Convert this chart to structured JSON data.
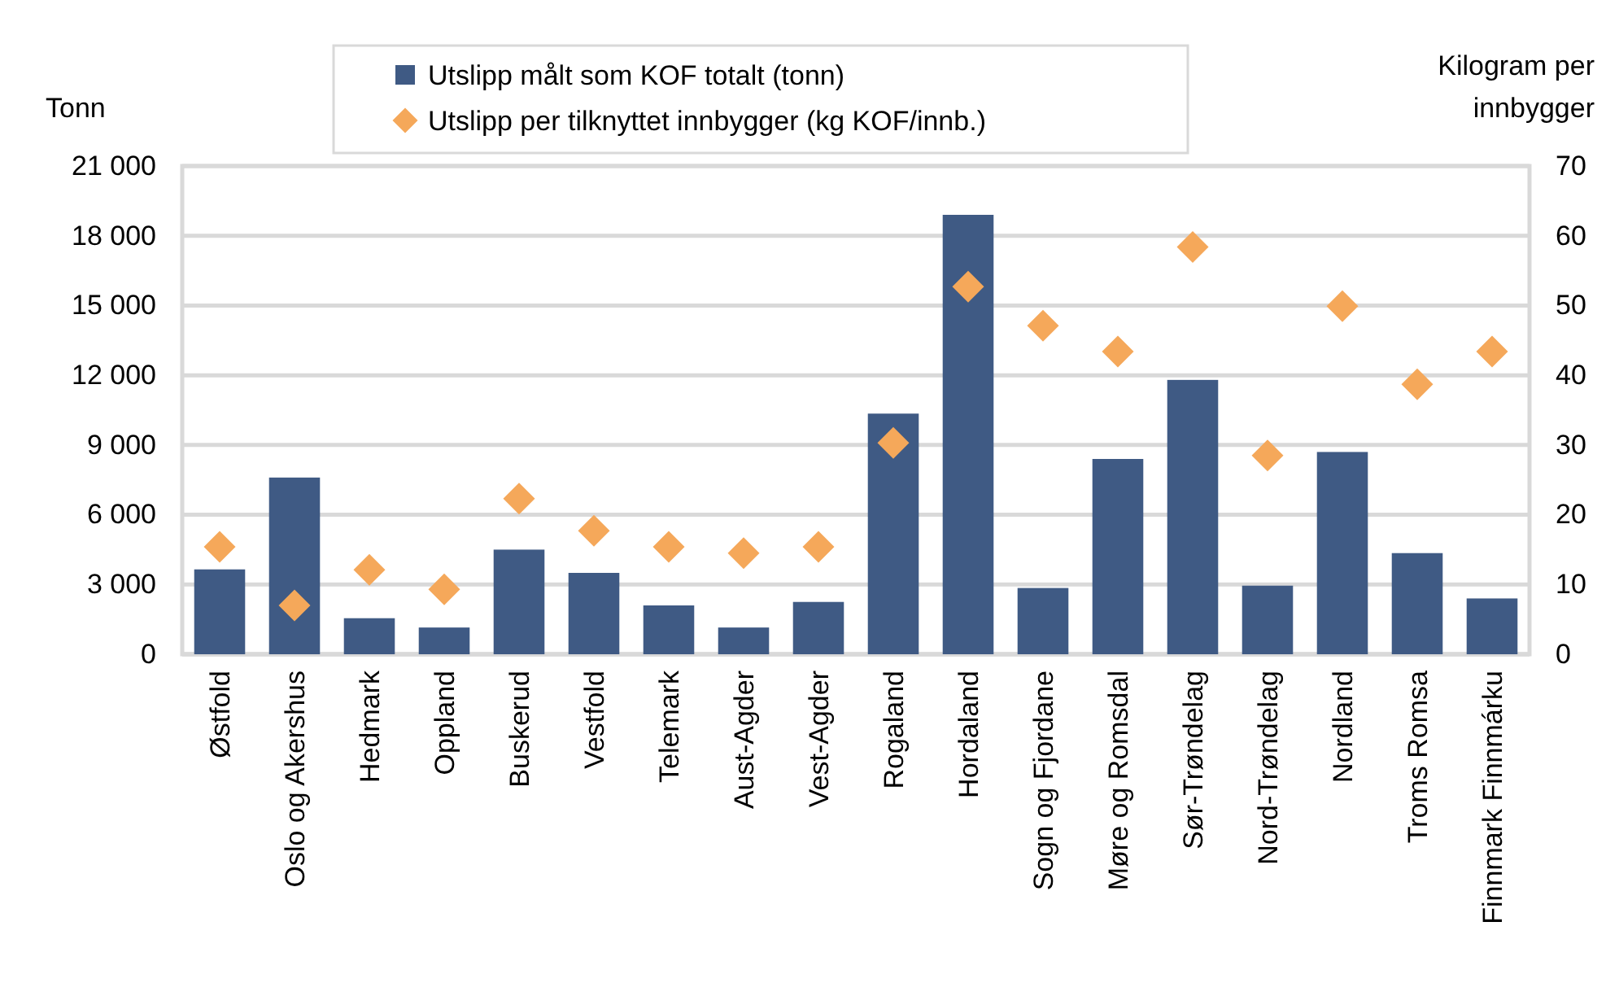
{
  "chart_data": {
    "type": "bar",
    "ylabel": "Tonn",
    "y2label": "Kilogram per innbygger",
    "categories": [
      "Østfold",
      "Oslo og Akershus",
      "Hedmark",
      "Oppland",
      "Buskerud",
      "Vestfold",
      "Telemark",
      "Aust-Agder",
      "Vest-Agder",
      "Rogaland",
      "Hordaland",
      "Sogn og Fjordane",
      "Møre og Romsdal",
      "Sør-Trøndelag",
      "Nord-Trøndelag",
      "Nordland",
      "Troms Romsa",
      "Finnmark Finnmárku"
    ],
    "series": [
      {
        "name": "Utslipp målt som KOF totalt (tonn)",
        "color": "#3f5a84",
        "values": [
          3650,
          7600,
          1550,
          1150,
          4500,
          3500,
          2100,
          1150,
          2250,
          10350,
          18900,
          2850,
          8400,
          11800,
          2950,
          8700,
          4350,
          2400
        ]
      },
      {
        "name": "Utslipp per tilknyttet innbygger (kg KOF/innb.)",
        "type": "scatter",
        "axis": "y2",
        "marker": "diamond",
        "color": "#f5a85a",
        "values": [
          15.4,
          7.0,
          12.1,
          9.3,
          22.3,
          17.7,
          15.4,
          14.5,
          15.4,
          30.3,
          52.7,
          47.1,
          43.4,
          58.4,
          28.5,
          49.9,
          38.7,
          43.4
        ]
      }
    ],
    "ylim": [
      0,
      21000
    ],
    "yticks": [
      0,
      {
        "value": 3000,
        "label": "3 000"
      },
      {
        "value": 6000,
        "label": "6 000"
      },
      {
        "value": 9000,
        "label": "9 000"
      },
      {
        "value": 12000,
        "label": "12 000"
      },
      {
        "value": 15000,
        "label": "15 000"
      },
      {
        "value": 18000,
        "label": "18 000"
      },
      {
        "value": 21000,
        "label": "21 000"
      }
    ],
    "y2lim": [
      0,
      70
    ],
    "y2ticks": [
      0,
      10,
      20,
      30,
      40,
      50,
      60,
      70
    ],
    "grid": "y",
    "legend": "top"
  }
}
